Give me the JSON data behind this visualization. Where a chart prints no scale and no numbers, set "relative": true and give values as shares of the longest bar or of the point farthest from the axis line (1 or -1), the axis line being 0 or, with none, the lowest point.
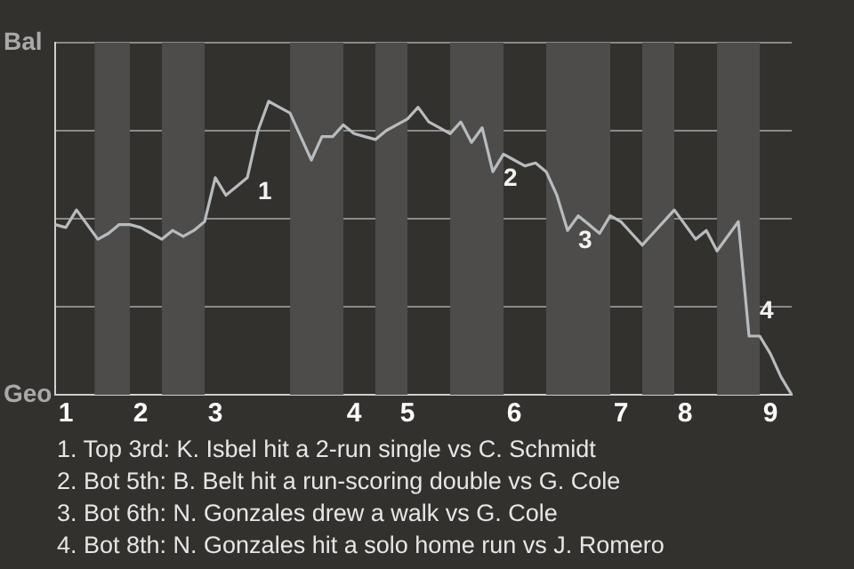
{
  "chart_data": {
    "type": "line",
    "relative": true,
    "categories": [
      null,
      "1",
      null,
      null,
      null,
      null,
      null,
      null,
      "2",
      null,
      null,
      null,
      null,
      null,
      null,
      "3",
      null,
      null,
      null,
      null,
      null,
      null,
      null,
      null,
      null,
      null,
      null,
      null,
      "4",
      null,
      null,
      null,
      null,
      "5",
      null,
      null,
      null,
      null,
      null,
      null,
      null,
      null,
      null,
      "6",
      null,
      null,
      null,
      null,
      null,
      null,
      null,
      null,
      null,
      "7",
      null,
      null,
      null,
      null,
      null,
      "8",
      null,
      null,
      null,
      null,
      null,
      null,
      null,
      "9",
      null,
      null
    ],
    "series": [
      {
        "color": "#b8bcbf",
        "values": [
          0.58,
          0.57,
          0.63,
          0.58,
          0.53,
          0.55,
          0.58,
          0.58,
          0.57,
          0.55,
          0.53,
          0.56,
          0.54,
          0.56,
          0.59,
          0.74,
          0.68,
          0.71,
          0.74,
          0.9,
          1,
          0.98,
          0.96,
          0.88,
          0.8,
          0.88,
          0.88,
          0.92,
          0.89,
          0.88,
          0.87,
          0.9,
          0.92,
          0.94,
          0.98,
          0.93,
          0.91,
          0.89,
          0.93,
          0.86,
          0.91,
          0.76,
          0.82,
          0.8,
          0.78,
          0.79,
          0.76,
          0.68,
          0.56,
          0.61,
          0.58,
          0.55,
          0.61,
          0.59,
          0.55,
          0.51,
          0.55,
          0.59,
          0.63,
          0.58,
          0.53,
          0.56,
          0.49,
          0.54,
          0.59,
          0.2,
          0.2,
          0.14,
          0.06,
          0
        ]
      }
    ],
    "grid": "y",
    "legend": false,
    "marker": "none",
    "line_style": "solid",
    "annotations": [
      "Bal",
      "Geo",
      "1",
      "2",
      "3",
      "4",
      "1. Top 3rd: K. Isbel hit a 2-run single vs C. Schmidt",
      "2. Bot 5th: B. Belt hit a run-scoring double vs G. Cole",
      "3. Bot 6th: N. Gonzales drew a walk vs G. Cole",
      "4. Bot 8th: N. Gonzales hit a solo home run vs J. Romero"
    ]
  }
}
